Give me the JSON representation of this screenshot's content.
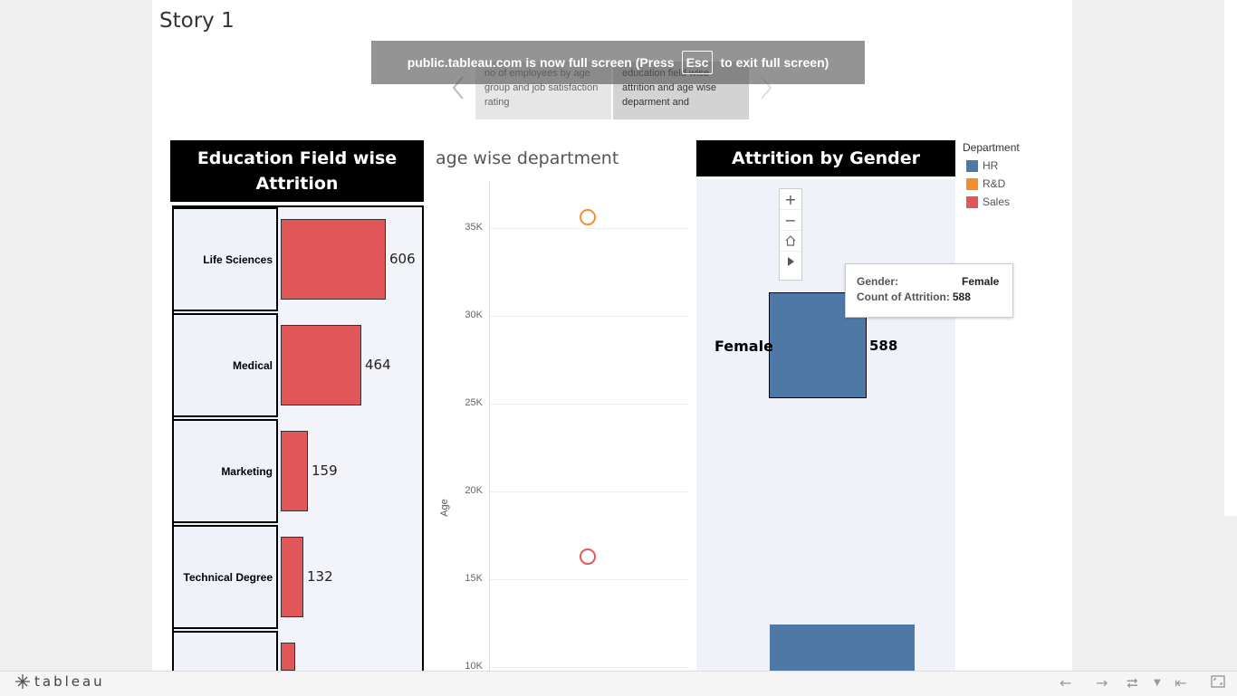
{
  "story": {
    "title": "Story 1"
  },
  "story_points": [
    {
      "text": "no of employees by age group and job satisfaction rating"
    },
    {
      "text": "education field wise attrition and age wise deparment and"
    }
  ],
  "fullscreen_banner": {
    "pre": "public.tableau.com is now full screen (Press",
    "key": "Esc",
    "post": "to exit full screen)"
  },
  "edu_chart": {
    "title_line1": "Education Field wise",
    "title_line2": "Attrition",
    "bar_color": "#e15759"
  },
  "age_chart": {
    "title": "age wise department",
    "ylabel": "Age"
  },
  "gender_chart": {
    "title": "Attrition by Gender",
    "female_label": "Female",
    "female_value": "588",
    "bar_color": "#4e79a7"
  },
  "legend": {
    "title": "Department",
    "items": [
      {
        "label": "HR",
        "color": "#4e79a7"
      },
      {
        "label": "R&D",
        "color": "#f28e2b"
      },
      {
        "label": "Sales",
        "color": "#e15759"
      }
    ]
  },
  "tooltip": {
    "k1": "Gender:",
    "v1": "Female",
    "k2": "Count of Attrition:",
    "v2": "588"
  },
  "zoom": {
    "plus": "+",
    "minus": "−"
  },
  "footer": {
    "brand": "tableau"
  },
  "chart_data": [
    {
      "type": "bar",
      "title": "Education Field wise Attrition",
      "categories": [
        "Life Sciences",
        "Medical",
        "Marketing",
        "Technical Degree"
      ],
      "values": [
        606,
        464,
        159,
        132
      ],
      "value_labels": [
        "606",
        "464",
        "159",
        "132"
      ]
    },
    {
      "type": "scatter",
      "title": "age wise department",
      "ylabel": "Age",
      "y_ticks": [
        10000,
        15000,
        20000,
        25000,
        30000,
        35000
      ],
      "y_tick_labels": [
        "10K",
        "15K",
        "20K",
        "25K",
        "30K",
        "35K"
      ],
      "ylim": [
        10000,
        37500
      ],
      "points": [
        {
          "y": 35600,
          "series": "R&D",
          "color": "#f28e2b"
        },
        {
          "y": 16300,
          "series": "Sales",
          "color": "#e15759"
        }
      ]
    },
    {
      "type": "bar",
      "title": "Attrition by Gender",
      "categories": [
        "Female"
      ],
      "values": [
        588
      ]
    }
  ]
}
